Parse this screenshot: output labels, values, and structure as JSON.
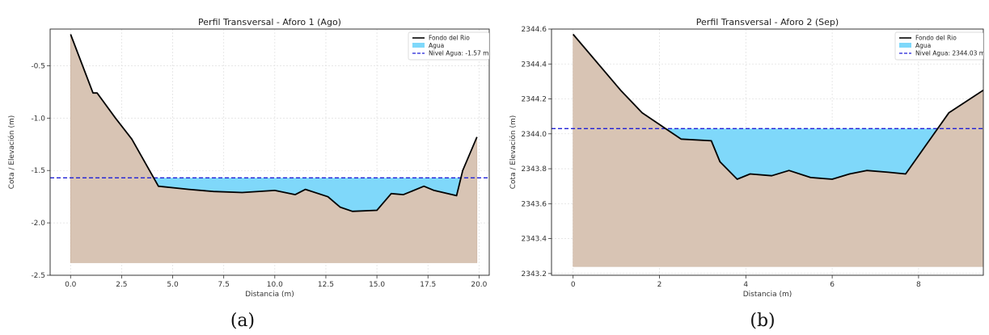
{
  "chart_data": [
    {
      "type": "area",
      "title": "Perfil Transversal - Aforo 1 (Ago)",
      "xlabel": "Distancia (m)",
      "ylabel": "Cota / Elevación (m)",
      "xlim": [
        -1.0,
        20.5
      ],
      "ylim": [
        -2.5,
        -0.15
      ],
      "xticks": [
        "0.0",
        "2.5",
        "5.0",
        "7.5",
        "10.0",
        "12.5",
        "15.0",
        "17.5",
        "20.0"
      ],
      "yticks": [
        "-0.5",
        "-1.0",
        "-1.5",
        "-2.0",
        "-2.5"
      ],
      "grid": true,
      "legend_position": "top-right",
      "base": -2.38,
      "water_level": -1.57,
      "series": [
        {
          "name": "Fondo del Rio",
          "x": [
            0.0,
            1.1,
            1.3,
            2.2,
            3.0,
            4.3,
            5.8,
            7.0,
            8.4,
            10.0,
            11.0,
            11.5,
            12.6,
            13.2,
            13.8,
            15.0,
            15.7,
            16.3,
            17.3,
            17.8,
            18.9,
            19.2,
            19.9
          ],
          "y": [
            -0.2,
            -0.76,
            -0.76,
            -1.0,
            -1.2,
            -1.65,
            -1.68,
            -1.7,
            -1.71,
            -1.69,
            -1.73,
            -1.68,
            -1.75,
            -1.85,
            -1.89,
            -1.88,
            -1.72,
            -1.73,
            -1.65,
            -1.69,
            -1.74,
            -1.5,
            -1.18
          ]
        },
        {
          "name": "Agua"
        },
        {
          "name": "Nivel Agua: -1.57 m"
        }
      ],
      "caption": "(a)"
    },
    {
      "type": "area",
      "title": "Perfil Transversal - Aforo 2 (Sep)",
      "xlabel": "Distancia (m)",
      "ylabel": "Cota / Elevación (m)",
      "xlim": [
        -0.5,
        9.5
      ],
      "ylim": [
        2343.19,
        2344.6
      ],
      "xticks": [
        "0",
        "2",
        "4",
        "6",
        "8"
      ],
      "yticks": [
        "2344.6",
        "2344.4",
        "2344.2",
        "2344.0",
        "2343.8",
        "2343.6",
        "2343.4",
        "2343.2"
      ],
      "grid": true,
      "legend_position": "top-right",
      "base": 2343.24,
      "water_level": 2344.03,
      "series": [
        {
          "name": "Fondo del Rio",
          "x": [
            0.0,
            1.1,
            1.6,
            2.5,
            3.2,
            3.4,
            3.8,
            4.1,
            4.6,
            5.0,
            5.5,
            6.0,
            6.4,
            6.8,
            7.3,
            7.7,
            8.3,
            8.7,
            9.5
          ],
          "y": [
            2344.57,
            2344.25,
            2344.12,
            2343.97,
            2343.96,
            2343.84,
            2343.74,
            2343.77,
            2343.76,
            2343.79,
            2343.75,
            2343.74,
            2343.77,
            2343.79,
            2343.78,
            2343.77,
            2343.98,
            2344.12,
            2344.25
          ]
        },
        {
          "name": "Agua"
        },
        {
          "name": "Nivel Agua: 2344.03 m"
        }
      ],
      "caption": "(b)"
    }
  ],
  "colors": {
    "ground": "#d8c4b4",
    "ground_edge": "#c9b09c",
    "water": "#7fd8fa",
    "bed_line": "#000000",
    "level_line": "#1f1fd6",
    "grid": "#e2e2e2"
  }
}
